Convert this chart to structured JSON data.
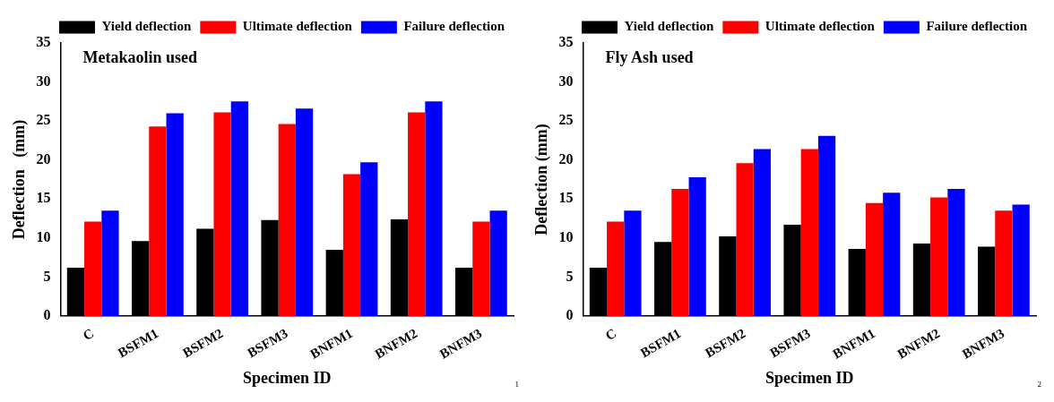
{
  "chart_data": [
    {
      "type": "bar",
      "title": "Metakaolin used",
      "xlabel": "Specimen ID",
      "ylabel": "Deflection   (mm)",
      "categories": [
        "C",
        "BSFM1",
        "BSFM2",
        "BSFM3",
        "BNFM1",
        "BNFM2",
        "BNFM3"
      ],
      "series": [
        {
          "name": "Yield deflection",
          "color": "#000000",
          "values": [
            6.2,
            9.6,
            11.2,
            12.3,
            8.5,
            12.4,
            6.2
          ]
        },
        {
          "name": "Ultimate deflection",
          "color": "#ff0000",
          "values": [
            12.1,
            24.3,
            26.1,
            24.6,
            18.2,
            26.1,
            12.1
          ]
        },
        {
          "name": "Failure deflection",
          "color": "#0000ff",
          "values": [
            13.5,
            26.0,
            27.5,
            26.6,
            19.7,
            27.5,
            13.5
          ]
        }
      ],
      "ylim": [
        0,
        35
      ],
      "yticks": [
        0,
        5,
        10,
        15,
        20,
        25,
        30,
        35
      ],
      "grid": false,
      "legend": "top right",
      "annotations": [
        "1"
      ]
    },
    {
      "type": "bar",
      "title": "Fly Ash used",
      "xlabel": "Specimen ID",
      "ylabel": "Deflection (mm)",
      "categories": [
        "C",
        "BSFM1",
        "BSFM2",
        "BSFM3",
        "BNFM1",
        "BNFM2",
        "BNFM3"
      ],
      "series": [
        {
          "name": "Yield deflection",
          "color": "#000000",
          "values": [
            6.2,
            9.5,
            10.2,
            11.7,
            8.6,
            9.3,
            8.9
          ]
        },
        {
          "name": "Ultimate deflection",
          "color": "#ff0000",
          "values": [
            12.1,
            16.3,
            19.6,
            21.4,
            14.5,
            15.2,
            13.5
          ]
        },
        {
          "name": "Failure deflection",
          "color": "#0000ff",
          "values": [
            13.5,
            17.8,
            21.4,
            23.1,
            15.8,
            16.3,
            14.3
          ]
        }
      ],
      "ylim": [
        0,
        35
      ],
      "yticks": [
        0,
        5,
        10,
        15,
        20,
        25,
        30,
        35
      ],
      "grid": false,
      "legend": "top right",
      "annotations": [
        "2"
      ]
    }
  ]
}
